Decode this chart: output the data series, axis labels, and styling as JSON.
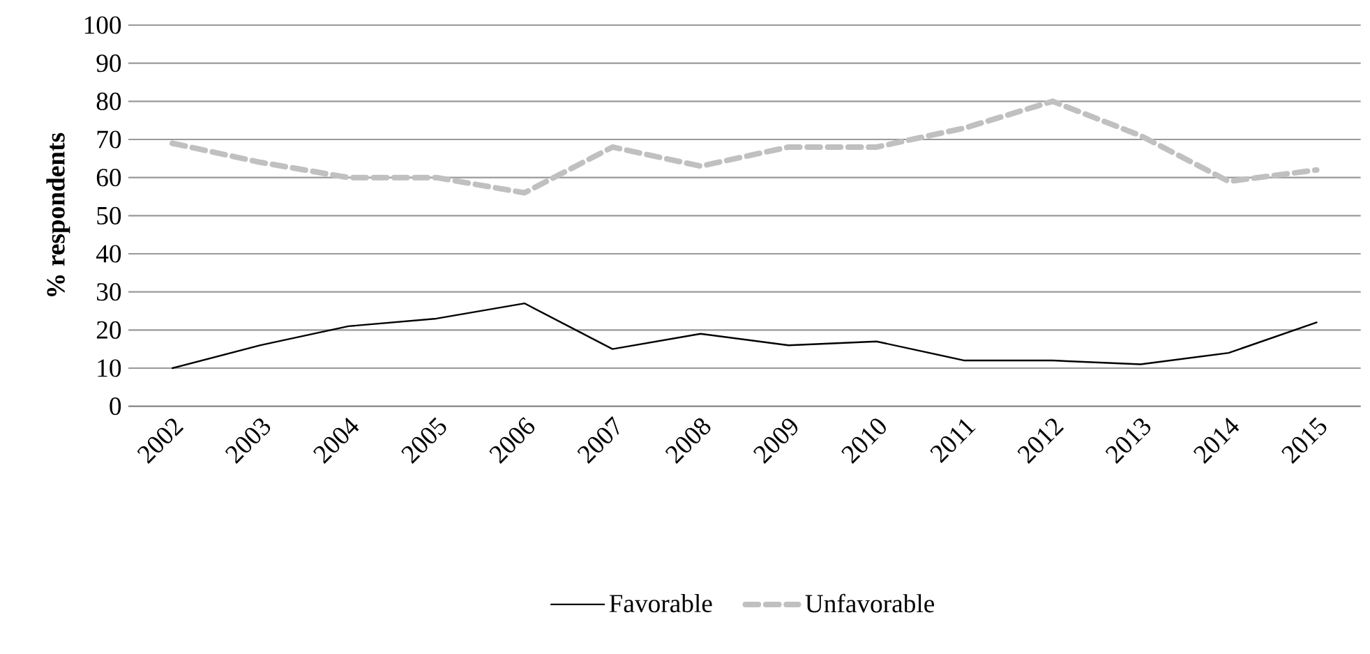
{
  "chart_data": {
    "type": "line",
    "ylabel": "% respondents",
    "categories": [
      "2002",
      "2003",
      "2004",
      "2005",
      "2006",
      "2007",
      "2008",
      "2009",
      "2010",
      "2011",
      "2012",
      "2013",
      "2014",
      "2015"
    ],
    "series": [
      {
        "name": "Favorable",
        "color": "#000000",
        "line_style": "solid",
        "values": [
          10,
          16,
          21,
          23,
          27,
          15,
          19,
          16,
          17,
          12,
          12,
          11,
          14,
          22
        ]
      },
      {
        "name": "Unfavorable",
        "color": "#c0c0c2",
        "line_style": "dashed",
        "values": [
          69,
          64,
          60,
          60,
          56,
          68,
          63,
          68,
          68,
          73,
          80,
          71,
          59,
          62
        ]
      }
    ],
    "ylim": [
      0,
      100
    ],
    "yticks": [
      0,
      10,
      20,
      30,
      40,
      50,
      60,
      70,
      80,
      90,
      100
    ],
    "grid": "y",
    "legend": "bottom",
    "marker": "none"
  }
}
